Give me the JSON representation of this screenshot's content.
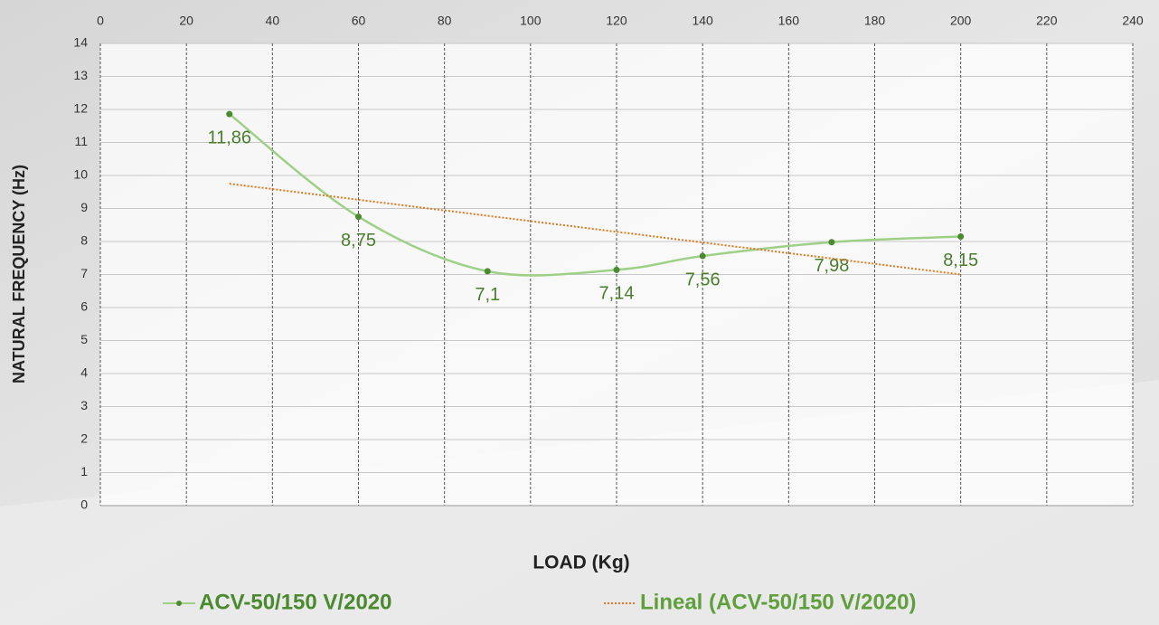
{
  "chart_data": {
    "type": "line",
    "x_label": "LOAD (Kg)",
    "y_label": "NATURAL FREQUENCY (Hz)",
    "x": [
      30,
      60,
      90,
      120,
      140,
      170,
      200
    ],
    "series": [
      {
        "name": "ACV-50/150 V/2020",
        "color": "#9fd087",
        "marker_color": "#4c8a30",
        "smooth": true,
        "values": [
          11.86,
          8.75,
          7.1,
          7.14,
          7.56,
          7.98,
          8.15
        ],
        "value_labels": [
          "11,86",
          "8,75",
          "7,1",
          "7,14",
          "7,56",
          "7,98",
          "8,15"
        ]
      },
      {
        "name": "Lineal (ACV-50/150 V/2020)",
        "color": "#e07a22",
        "dash": "dotted",
        "x": [
          30,
          200
        ],
        "values": [
          9.75,
          7.0
        ]
      }
    ],
    "xlim": [
      0,
      240
    ],
    "xticks": [
      0,
      20,
      40,
      60,
      80,
      100,
      120,
      140,
      160,
      180,
      200,
      220,
      240
    ],
    "ylim": [
      0,
      14
    ],
    "yticks": [
      0,
      1,
      2,
      3,
      4,
      5,
      6,
      7,
      8,
      9,
      10,
      11,
      12,
      13,
      14
    ],
    "grid": true,
    "legend": "bottom"
  }
}
